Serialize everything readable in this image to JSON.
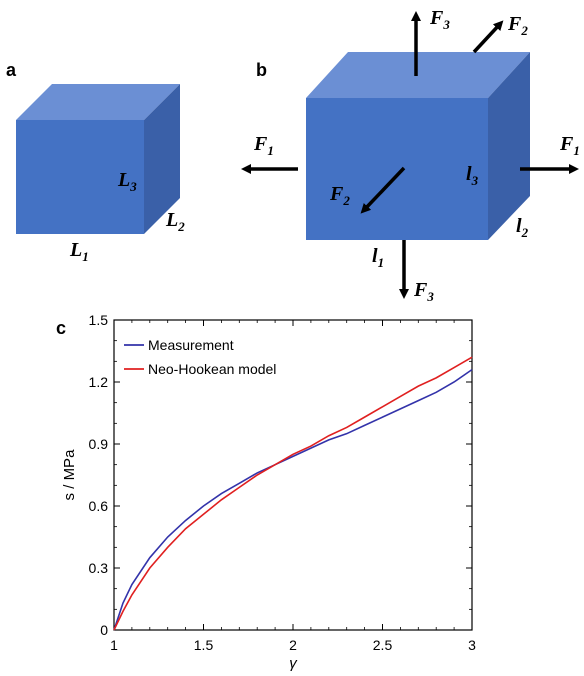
{
  "panels": {
    "a": {
      "letter": "a",
      "labels": {
        "L1": "L",
        "L1_sub": "1",
        "L2": "L",
        "L2_sub": "2",
        "L3": "L",
        "L3_sub": "3"
      }
    },
    "b": {
      "letter": "b",
      "labels": {
        "l1": "l",
        "l1_sub": "1",
        "l2": "l",
        "l2_sub": "2",
        "l3": "l",
        "l3_sub": "3",
        "F1_left": "F",
        "F1_left_sub": "1",
        "F1_right": "F",
        "F1_right_sub": "1",
        "F2_top": "F",
        "F2_top_sub": "2",
        "F2_front": "F",
        "F2_front_sub": "2",
        "F3_top": "F",
        "F3_top_sub": "3",
        "F3_bottom": "F",
        "F3_bottom_sub": "3"
      }
    },
    "c": {
      "letter": "c"
    }
  },
  "colors": {
    "cube_front": "#4472c4",
    "cube_top": "#6b8fd4",
    "cube_side": "#3a60a8",
    "measurement": "#3333aa",
    "model": "#e02020"
  },
  "chart_data": {
    "type": "line",
    "xlabel": "γ",
    "ylabel": "s / MPa",
    "xlim": [
      1,
      3
    ],
    "ylim": [
      0,
      1.5
    ],
    "xticks": [
      "1",
      "1.5",
      "2",
      "2.5",
      "3"
    ],
    "yticks": [
      "0",
      "0.3",
      "0.6",
      "0.9",
      "1.2",
      "1.5"
    ],
    "legend_position": "top-left",
    "series": [
      {
        "name": "Measurement",
        "color": "#3333aa",
        "x": [
          1.0,
          1.05,
          1.1,
          1.2,
          1.3,
          1.4,
          1.5,
          1.6,
          1.7,
          1.8,
          1.9,
          2.0,
          2.1,
          2.2,
          2.3,
          2.4,
          2.5,
          2.6,
          2.7,
          2.8,
          2.9,
          3.0
        ],
        "y": [
          0.0,
          0.13,
          0.22,
          0.35,
          0.45,
          0.53,
          0.6,
          0.66,
          0.71,
          0.76,
          0.8,
          0.84,
          0.88,
          0.92,
          0.95,
          0.99,
          1.03,
          1.07,
          1.11,
          1.15,
          1.2,
          1.26
        ]
      },
      {
        "name": "Neo-Hookean model",
        "color": "#e02020",
        "x": [
          1.0,
          1.05,
          1.1,
          1.2,
          1.3,
          1.4,
          1.5,
          1.6,
          1.7,
          1.8,
          1.9,
          2.0,
          2.1,
          2.2,
          2.3,
          2.4,
          2.5,
          2.6,
          2.7,
          2.8,
          2.9,
          3.0
        ],
        "y": [
          0.0,
          0.09,
          0.17,
          0.3,
          0.4,
          0.49,
          0.56,
          0.63,
          0.69,
          0.75,
          0.8,
          0.85,
          0.89,
          0.94,
          0.98,
          1.03,
          1.08,
          1.13,
          1.18,
          1.22,
          1.27,
          1.32
        ]
      }
    ]
  }
}
